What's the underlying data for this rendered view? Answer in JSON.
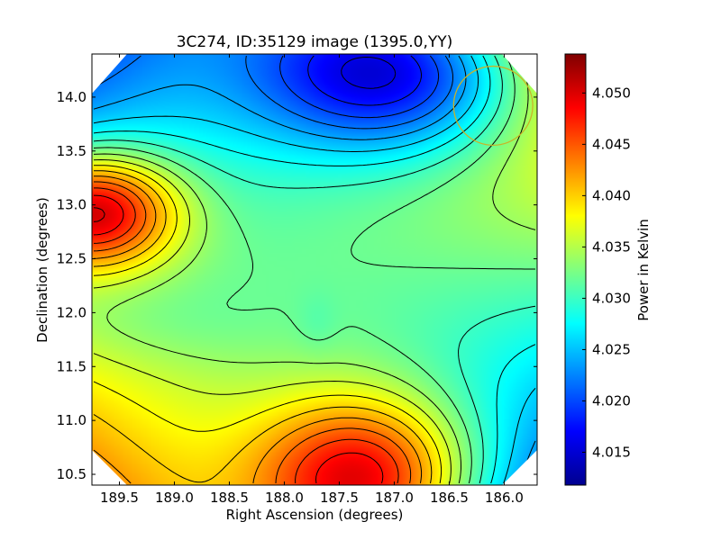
{
  "chart_data": {
    "type": "heatmap",
    "title": "3C274, ID:35129 image (1395.0,YY)",
    "xlabel": "Right Ascension (degrees)",
    "ylabel": "Declination (degrees)",
    "colorbar_label": "Power in Kelvin",
    "xlim": [
      189.75,
      185.7
    ],
    "ylim": [
      10.4,
      14.4
    ],
    "clim": [
      4.0118,
      4.0538
    ],
    "x_ticks": [
      189.5,
      189.0,
      188.5,
      188.0,
      187.5,
      187.0,
      186.5,
      186.0
    ],
    "x_tick_labels": [
      "189.5",
      "189.0",
      "188.5",
      "188.0",
      "187.5",
      "187.0",
      "186.5",
      "186.0"
    ],
    "y_ticks": [
      10.5,
      11.0,
      11.5,
      12.0,
      12.5,
      13.0,
      13.5,
      14.0
    ],
    "y_tick_labels": [
      "10.5",
      "11.0",
      "11.5",
      "12.0",
      "12.5",
      "13.0",
      "13.5",
      "14.0"
    ],
    "colorbar_ticks": [
      4.015,
      4.02,
      4.025,
      4.03,
      4.035,
      4.04,
      4.045,
      4.05
    ],
    "colorbar_tick_labels": [
      "4.015",
      "4.020",
      "4.025",
      "4.030",
      "4.035",
      "4.040",
      "4.045",
      "4.050"
    ],
    "colormap": "jet",
    "contour_color": "#000000",
    "beam_circle": {
      "ra": 186.1,
      "dec": 13.92,
      "radius_deg": 0.36,
      "color": "#c8b428"
    },
    "features": [
      {
        "ra": 189.75,
        "dec": 12.95,
        "value": 4.0535,
        "sx": 0.55,
        "sy": 0.38
      },
      {
        "ra": 187.25,
        "dec": 10.45,
        "value": 4.052,
        "sx": 0.7,
        "sy": 0.55
      },
      {
        "ra": 187.7,
        "dec": 11.9,
        "value": 4.031,
        "sx": 0.13,
        "sy": 0.2
      },
      {
        "ra": 189.1,
        "dec": 11.9,
        "value": 4.0305,
        "sx": 0.75,
        "sy": 0.3
      },
      {
        "ra": 187.0,
        "dec": 14.25,
        "value": 4.012,
        "sx": 0.9,
        "sy": 0.55
      },
      {
        "ra": 186.3,
        "dec": 12.1,
        "value": 4.032,
        "sx": 0.7,
        "sy": 0.9
      }
    ]
  }
}
